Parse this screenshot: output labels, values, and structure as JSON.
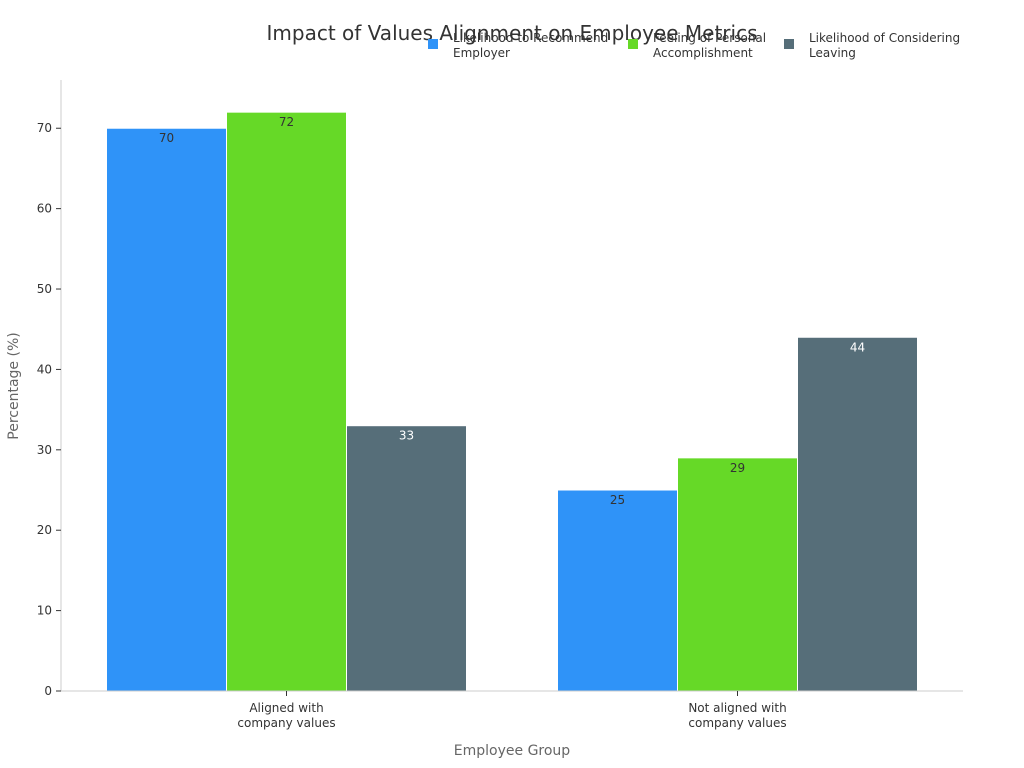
{
  "chart_data": {
    "type": "bar",
    "title": "Impact of Values Alignment on Employee Metrics",
    "xlabel": "Employee Group",
    "ylabel": "Percentage (%)",
    "ylim": [
      0,
      76
    ],
    "yticks": [
      0,
      10,
      20,
      30,
      40,
      50,
      60,
      70
    ],
    "categories": [
      [
        "Aligned with",
        "company values"
      ],
      [
        "Not aligned with",
        "company values"
      ]
    ],
    "series": [
      {
        "name": [
          "Likelihood to Recommend",
          "Employer"
        ],
        "values": [
          70,
          25
        ],
        "color": "#2f93f8",
        "label_color": "#333333"
      },
      {
        "name": [
          "Feeling of Personal",
          "Accomplishment"
        ],
        "values": [
          72,
          29
        ],
        "color": "#66d927",
        "label_color": "#333333"
      },
      {
        "name": [
          "Likelihood of Considering",
          "Leaving"
        ],
        "values": [
          33,
          44
        ],
        "color": "#566e79",
        "label_color": "#ffffff"
      }
    ],
    "legend_position": "top-right",
    "grid": false
  }
}
